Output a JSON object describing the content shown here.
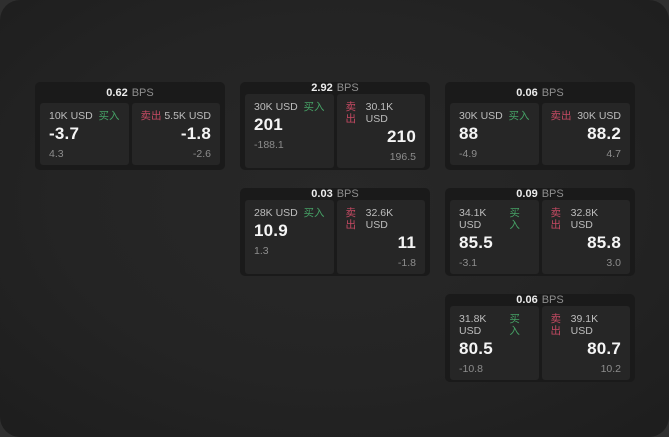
{
  "labels": {
    "bps_unit": "BPS",
    "buy": "买入",
    "sell": "卖出"
  },
  "colors": {
    "buy_green": "#46a266",
    "sell_red": "#c54a63",
    "card_bg": "#1a1a1a",
    "panel_bg": "#262626",
    "window_bg": "#242424"
  },
  "cards": [
    {
      "bps_value": "0.62",
      "buy": {
        "size": "10K USD",
        "price": "-3.7",
        "change": "4.3"
      },
      "sell": {
        "size": "5.5K USD",
        "price": "-1.8",
        "change": "-2.6"
      }
    },
    {
      "bps_value": "2.92",
      "buy": {
        "size": "30K USD",
        "price": "201",
        "change": "-188.1"
      },
      "sell": {
        "size": "30.1K USD",
        "price": "210",
        "change": "196.5"
      }
    },
    {
      "bps_value": "0.06",
      "buy": {
        "size": "30K USD",
        "price": "88",
        "change": "-4.9"
      },
      "sell": {
        "size": "30K USD",
        "price": "88.2",
        "change": "4.7"
      }
    },
    {
      "bps_value": "0.03",
      "buy": {
        "size": "28K USD",
        "price": "10.9",
        "change": "1.3"
      },
      "sell": {
        "size": "32.6K USD",
        "price": "11",
        "change": "-1.8"
      }
    },
    {
      "bps_value": "0.09",
      "buy": {
        "size": "34.1K USD",
        "price": "85.5",
        "change": "-3.1"
      },
      "sell": {
        "size": "32.8K USD",
        "price": "85.8",
        "change": "3.0"
      }
    },
    {
      "bps_value": "0.06",
      "buy": {
        "size": "31.8K USD",
        "price": "80.5",
        "change": "-10.8"
      },
      "sell": {
        "size": "39.1K USD",
        "price": "80.7",
        "change": "10.2"
      }
    }
  ]
}
